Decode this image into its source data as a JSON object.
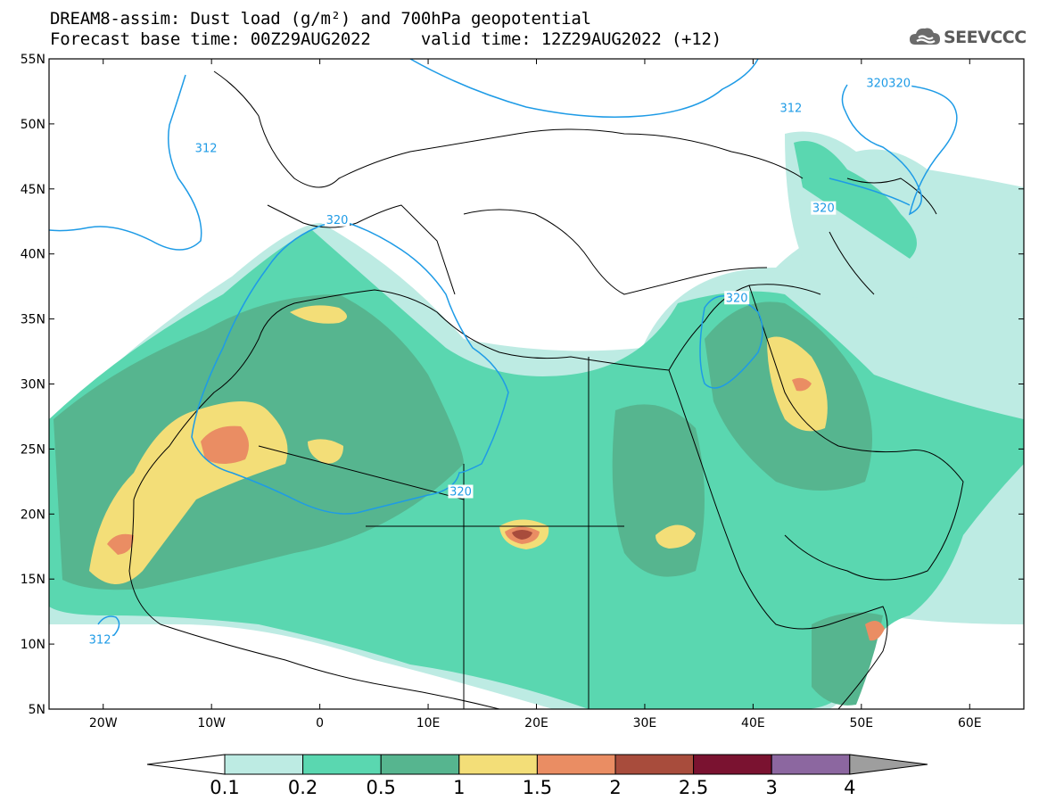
{
  "header": {
    "title_line1": "DREAM8-assim: Dust load (g/m²) and 700hPa geopotential",
    "title_line2": "Forecast base time: 00Z29AUG2022     valid time: 12Z29AUG2022 (+12)",
    "logo_text": "SEEVCCC",
    "logo_icon": "cloud-logo-icon"
  },
  "map": {
    "lon_range": [
      -25,
      65
    ],
    "lat_range": [
      5,
      55
    ],
    "lon_ticks": [
      {
        "value": -20,
        "label": "20W"
      },
      {
        "value": -10,
        "label": "10W"
      },
      {
        "value": 0,
        "label": "0"
      },
      {
        "value": 10,
        "label": "10E"
      },
      {
        "value": 20,
        "label": "20E"
      },
      {
        "value": 30,
        "label": "30E"
      },
      {
        "value": 40,
        "label": "40E"
      },
      {
        "value": 50,
        "label": "50E"
      },
      {
        "value": 60,
        "label": "60E"
      }
    ],
    "lat_ticks": [
      {
        "value": 55,
        "label": "55N"
      },
      {
        "value": 50,
        "label": "50N"
      },
      {
        "value": 45,
        "label": "45N"
      },
      {
        "value": 40,
        "label": "40N"
      },
      {
        "value": 35,
        "label": "35N"
      },
      {
        "value": 30,
        "label": "30N"
      },
      {
        "value": 25,
        "label": "25N"
      },
      {
        "value": 20,
        "label": "20N"
      },
      {
        "value": 15,
        "label": "15N"
      },
      {
        "value": 10,
        "label": "10N"
      },
      {
        "value": 5,
        "label": "5N"
      }
    ],
    "contour_labels": [
      {
        "text": "312",
        "lon": -10.5,
        "lat": 48.1
      },
      {
        "text": "312",
        "lon": 43.5,
        "lat": 51.2
      },
      {
        "text": "320320",
        "lon": 52.5,
        "lat": 53.1
      },
      {
        "text": "320",
        "lon": 46.5,
        "lat": 43.5
      },
      {
        "text": "320",
        "lon": 38.5,
        "lat": 36.6
      },
      {
        "text": "320",
        "lon": 1.6,
        "lat": 42.6
      },
      {
        "text": "320",
        "lon": 13.0,
        "lat": 21.7
      },
      {
        "text": "312",
        "lon": -20.3,
        "lat": 10.3
      }
    ]
  },
  "colorbar": {
    "levels": [
      "0.1",
      "0.2",
      "0.5",
      "1",
      "1.5",
      "2",
      "2.5",
      "3",
      "4"
    ],
    "colors": [
      "#bdebe3",
      "#5ad7b0",
      "#56b58f",
      "#f3de78",
      "#ea8d63",
      "#a84c3c",
      "#7a1230",
      "#8c67a0"
    ],
    "under_color": "#ffffff",
    "over_color": "#9e9e9e"
  },
  "colors": {
    "contour_line": "#1e9be6",
    "border_line": "#000000"
  }
}
